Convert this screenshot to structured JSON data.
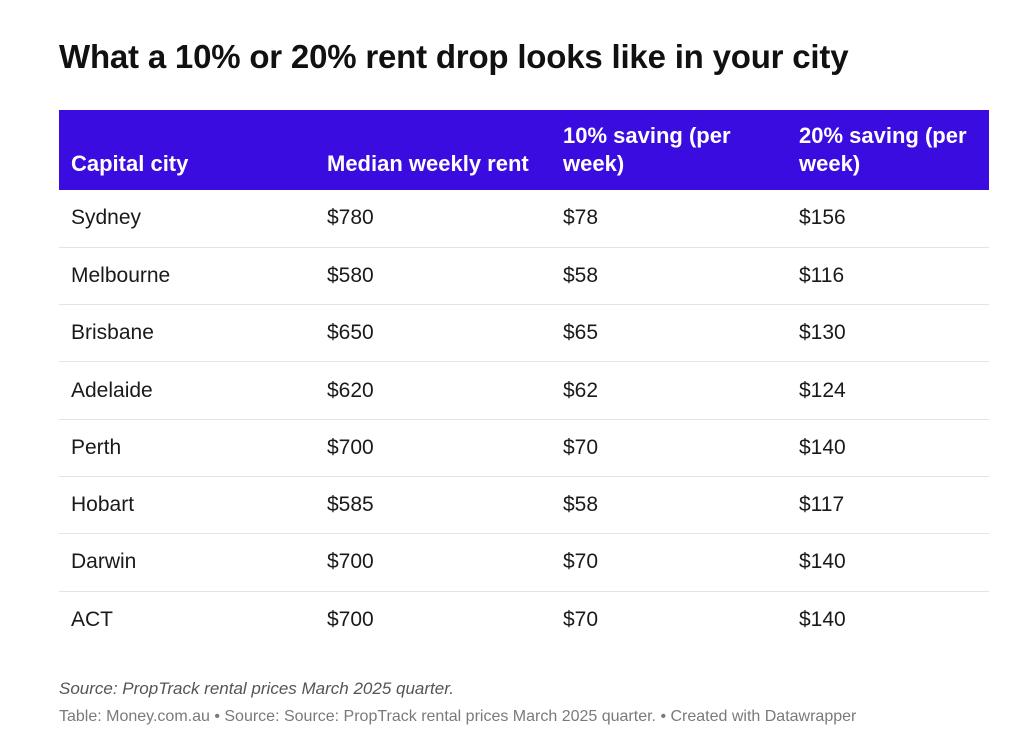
{
  "chart_data": {
    "type": "table",
    "title": "What a 10% or 20% rent drop looks like in your city",
    "columns": [
      "Capital city",
      "Median weekly rent",
      "10% saving (per week)",
      "20% saving (per week)"
    ],
    "rows": [
      [
        "Sydney",
        "$780",
        "$78",
        "$156"
      ],
      [
        "Melbourne",
        "$580",
        "$58",
        "$116"
      ],
      [
        "Brisbane",
        "$650",
        "$65",
        "$130"
      ],
      [
        "Adelaide",
        "$620",
        "$62",
        "$124"
      ],
      [
        "Perth",
        "$700",
        "$70",
        "$140"
      ],
      [
        "Hobart",
        "$585",
        "$58",
        "$117"
      ],
      [
        "Darwin",
        "$700",
        "$70",
        "$140"
      ],
      [
        "ACT",
        "$700",
        "$70",
        "$140"
      ]
    ],
    "header_color": "#3a0ce0",
    "source": "Source: PropTrack rental prices March 2025 quarter.",
    "footer": "Table: Money.com.au • Source: Source: PropTrack rental prices March 2025 quarter.  • Created with Datawrapper"
  }
}
